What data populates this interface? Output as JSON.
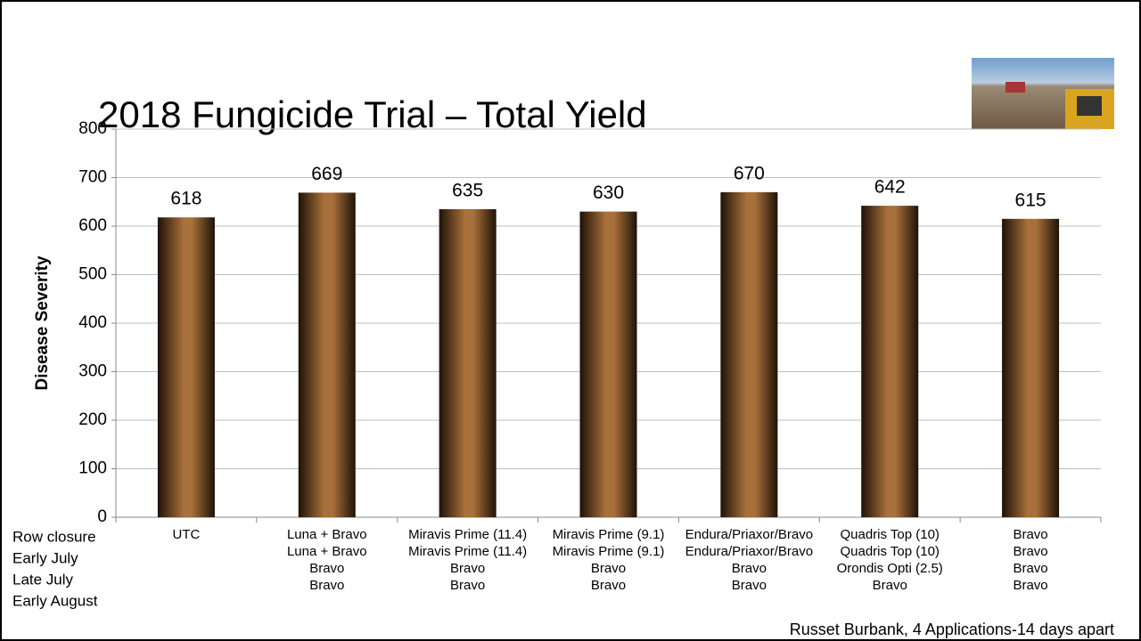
{
  "chart_data": {
    "type": "bar",
    "title": "2018 Fungicide Trial – Total Yield",
    "y_label": "Disease Severity",
    "categories": [
      [
        "UTC"
      ],
      [
        "Luna + Bravo",
        "Luna + Bravo",
        "Bravo",
        "Bravo"
      ],
      [
        "Miravis Prime (11.4)",
        "Miravis Prime (11.4)",
        "Bravo",
        "Bravo"
      ],
      [
        "Miravis Prime (9.1)",
        "Miravis Prime (9.1)",
        "Bravo",
        "Bravo"
      ],
      [
        "Endura/Priaxor/Bravo",
        "Endura/Priaxor/Bravo",
        "Bravo",
        "Bravo"
      ],
      [
        "Quadris Top (10)",
        "Quadris Top (10)",
        "Orondis Opti (2.5)",
        "Bravo"
      ],
      [
        "Bravo",
        "Bravo",
        "Bravo",
        "Bravo"
      ]
    ],
    "row_labels": [
      "Row closure",
      "Early July",
      "Late July",
      "Early August"
    ],
    "values": [
      618,
      669,
      635,
      630,
      670,
      642,
      615
    ],
    "color": "#a8703a",
    "ylim": [
      0,
      800
    ],
    "yticks": [
      0,
      100,
      200,
      300,
      400,
      500,
      600,
      700,
      800
    ],
    "grid": true,
    "footnote": "Russet Burbank, 4 Applications-14 days apart"
  }
}
